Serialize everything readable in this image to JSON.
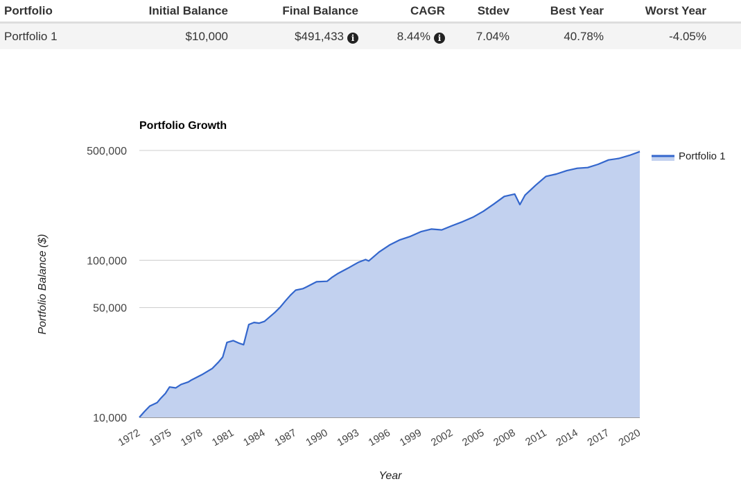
{
  "summary_table": {
    "headers": [
      "Portfolio",
      "Initial Balance",
      "Final Balance",
      "CAGR",
      "Stdev",
      "Best Year",
      "Worst Year"
    ],
    "row": {
      "portfolio": "Portfolio 1",
      "initial_balance": "$10,000",
      "final_balance": "$491,433",
      "cagr": "8.44%",
      "stdev": "7.04%",
      "best_year": "40.78%",
      "worst_year": "-4.05%"
    },
    "info_icons": [
      "info-icon",
      "info-icon"
    ]
  },
  "chart_data": {
    "type": "area",
    "title": "Portfolio Growth",
    "xlabel": "Year",
    "ylabel": "Portfolio Balance ($)",
    "y_scale": "log",
    "ylim": [
      10000,
      500000
    ],
    "xlim": [
      1972,
      2020
    ],
    "y_ticks": [
      10000,
      50000,
      100000,
      500000
    ],
    "y_tick_labels": [
      "10,000",
      "50,000",
      "100,000",
      "500,000"
    ],
    "x_ticks": [
      "1972",
      "1975",
      "1978",
      "1981",
      "1984",
      "1987",
      "1990",
      "1993",
      "1996",
      "1999",
      "2002",
      "2005",
      "2008",
      "2011",
      "2014",
      "2017",
      "2020"
    ],
    "grid": true,
    "legend_position": "right",
    "colors": {
      "line": "#3366cc",
      "fill": "#c2d1ef"
    },
    "series": [
      {
        "name": "Portfolio 1",
        "x": [
          1972,
          1972.5,
          1973,
          1973.7,
          1974,
          1974.5,
          1974.9,
          1975.5,
          1976,
          1976.7,
          1977,
          1978,
          1979,
          1979.6,
          1980,
          1980.4,
          1981,
          1981.6,
          1982,
          1982.5,
          1983,
          1983.5,
          1984,
          1985,
          1985.5,
          1986,
          1986.5,
          1987,
          1987.7,
          1988,
          1989,
          1990,
          1990.5,
          1991,
          1992,
          1993,
          1993.7,
          1994,
          1995,
          1996,
          1997,
          1998,
          1999,
          2000,
          2001,
          2002,
          2003,
          2004,
          2005,
          2006,
          2007,
          2008,
          2008.5,
          2009,
          2010,
          2011,
          2012,
          2013,
          2014,
          2015,
          2016,
          2017,
          2018,
          2019,
          2020
        ],
        "y": [
          10000,
          10900,
          11800,
          12400,
          13100,
          14200,
          15600,
          15400,
          16200,
          16800,
          17300,
          18700,
          20500,
          22500,
          24200,
          30000,
          30800,
          29600,
          29000,
          39000,
          40200,
          39800,
          40800,
          46500,
          50200,
          55000,
          60000,
          64500,
          66000,
          67500,
          73000,
          73500,
          78000,
          82000,
          89000,
          97000,
          101000,
          99000,
          113000,
          125000,
          135000,
          142000,
          152000,
          158000,
          156000,
          166000,
          176000,
          188000,
          205000,
          228000,
          255000,
          264000,
          226000,
          260000,
          300000,
          342000,
          354000,
          372000,
          385000,
          389000,
          408000,
          435000,
          445000,
          465000,
          491433
        ]
      }
    ]
  }
}
